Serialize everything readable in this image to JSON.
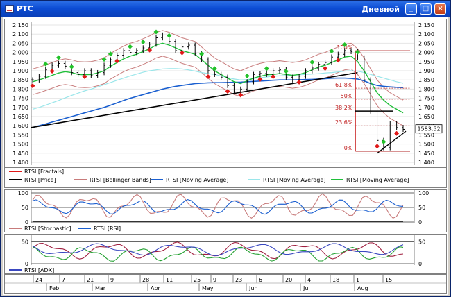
{
  "window": {
    "app_title": "РТС",
    "chart_title": "Дневной"
  },
  "main": {
    "y_ticks": [
      "2 150",
      "2 100",
      "2 050",
      "2 000",
      "1 950",
      "1 900",
      "1 850",
      "1 800",
      "1 750",
      "1 700",
      "1 650",
      "1 600",
      "1 550",
      "1 500",
      "1 450",
      "1 400"
    ],
    "right_y_ticks": [
      "2 150",
      "2 100",
      "2 050",
      "2 000",
      "1 950",
      "1 900",
      "1 850",
      "1 800",
      "1 750",
      "1 700",
      "1 650",
      "1 600",
      "1 550",
      "1 500",
      "1 450",
      "1 400"
    ],
    "current_price": "1583.52",
    "fib_levels": [
      "100%",
      "61.8%",
      "50%",
      "38.2%",
      "23.6%",
      "0%"
    ],
    "legend": [
      "RTSI [Fractals]",
      "RTSI [Price]",
      "RTSI [Bollinger Bands]",
      "RTSI [Moving Average]",
      "RTSI [Moving Average]",
      "RTSI [Moving Average]"
    ],
    "colors": {
      "price": "#000000",
      "bollinger": "#c87b7b",
      "ma_blue": "#1a5fd0",
      "ma_cyan": "#9ae6ea",
      "ma_green": "#1fbf3a",
      "fractal_up": "#22c22a",
      "fractal_down": "#e01818",
      "trend": "#000000"
    }
  },
  "osc1": {
    "ticks": [
      "100",
      "50",
      "0"
    ],
    "legend": [
      "RTSI [Stochastic]",
      "RTSI [RSI]"
    ]
  },
  "osc2": {
    "ticks": [
      "50",
      "0"
    ],
    "legend": [
      "RTSI [ADX]"
    ]
  },
  "xaxis": {
    "day_labels": [
      "24",
      "7",
      "21",
      "9",
      "28",
      "11",
      "25",
      "9",
      "23",
      "6",
      "20",
      "4",
      "18",
      "1",
      "15"
    ],
    "month_labels": [
      "Feb",
      "Mar",
      "Apr",
      "May",
      "Jun",
      "Jul",
      "Aug"
    ]
  },
  "chart_data": {
    "type": "line",
    "title": "",
    "ylim": [
      1400,
      2150
    ],
    "series": [
      {
        "name": "RTSI [Price]",
        "values": [
          1850,
          1870,
          1905,
          1930,
          1940,
          1925,
          1890,
          1880,
          1900,
          1875,
          1890,
          1930,
          1960,
          1985,
          2010,
          2000,
          2010,
          2025,
          2045,
          2080,
          2095,
          2060,
          2010,
          2030,
          2040,
          1995,
          1960,
          1900,
          1880,
          1865,
          1820,
          1785,
          1800,
          1840,
          1880,
          1885,
          1880,
          1900,
          1905,
          1865,
          1850,
          1870,
          1900,
          1915,
          1935,
          1945,
          1975,
          1990,
          2010,
          2005,
          1970,
          1850,
          1680,
          1520,
          1480,
          1610,
          1590,
          1580
        ]
      },
      {
        "name": "RTSI [Moving Average]",
        "values": [
          1590,
          1600,
          1610,
          1620,
          1630,
          1640,
          1650,
          1660,
          1670,
          1680,
          1690,
          1700,
          1712,
          1725,
          1738,
          1750,
          1760,
          1770,
          1780,
          1790,
          1800,
          1808,
          1815,
          1820,
          1825,
          1830,
          1832,
          1834,
          1835,
          1835,
          1836,
          1837,
          1838,
          1840,
          1842,
          1844,
          1846,
          1848,
          1850,
          1850,
          1850,
          1851,
          1852,
          1853,
          1855,
          1857,
          1859,
          1860,
          1860,
          1858,
          1855,
          1845,
          1830,
          1820,
          1815,
          1812,
          1810,
          1808
        ]
      },
      {
        "name": "RTSI [Moving Average]",
        "values": [
          1690,
          1700,
          1712,
          1725,
          1738,
          1752,
          1765,
          1778,
          1790,
          1800,
          1812,
          1824,
          1836,
          1848,
          1860,
          1872,
          1882,
          1892,
          1900,
          1905,
          1910,
          1912,
          1912,
          1910,
          1905,
          1898,
          1890,
          1885,
          1880,
          1872,
          1862,
          1855,
          1850,
          1852,
          1858,
          1862,
          1866,
          1870,
          1872,
          1874,
          1876,
          1878,
          1880,
          1882,
          1884,
          1888,
          1890,
          1894,
          1898,
          1900,
          1898,
          1890,
          1880,
          1870,
          1860,
          1850,
          1840,
          1832
        ]
      },
      {
        "name": "RTSI [Moving Average]",
        "values": [
          1840,
          1850,
          1862,
          1875,
          1888,
          1895,
          1890,
          1880,
          1878,
          1880,
          1888,
          1900,
          1925,
          1945,
          1965,
          1980,
          1990,
          2005,
          2020,
          2040,
          2050,
          2040,
          2025,
          2010,
          2000,
          1990,
          1960,
          1930,
          1900,
          1880,
          1860,
          1840,
          1830,
          1845,
          1860,
          1870,
          1878,
          1880,
          1885,
          1880,
          1875,
          1880,
          1890,
          1905,
          1920,
          1930,
          1945,
          1960,
          1975,
          1980,
          1950,
          1900,
          1840,
          1780,
          1740,
          1710,
          1690,
          1670
        ]
      }
    ],
    "fibonacci": {
      "100%": 2010,
      "61.8%": 1805,
      "50%": 1745,
      "38.2%": 1680,
      "23.6%": 1600,
      "0%": 1460
    }
  }
}
